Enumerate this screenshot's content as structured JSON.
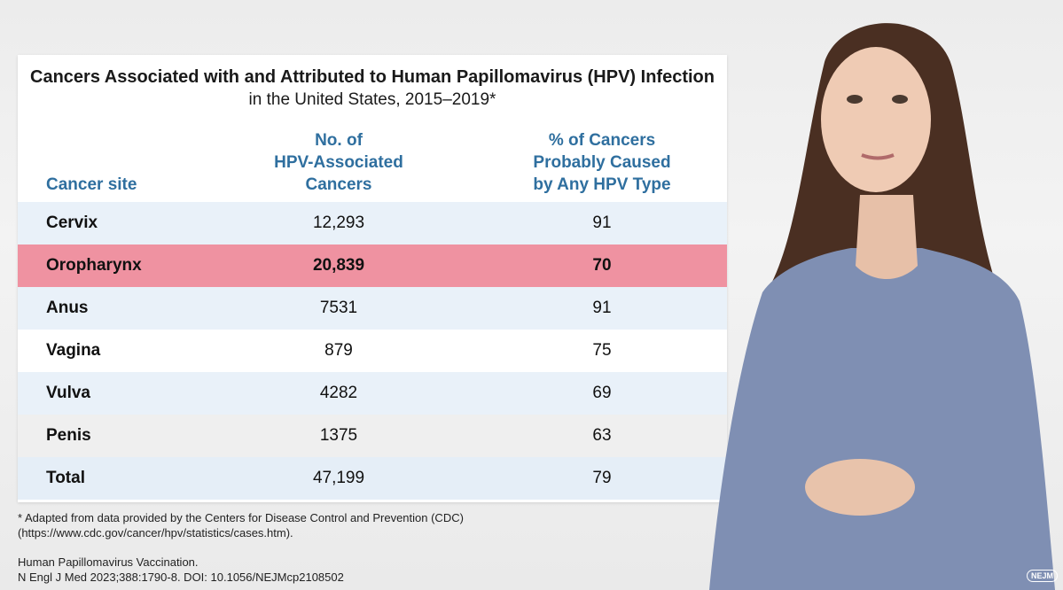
{
  "slide": {
    "title": "Cancers Associated with and Attributed to Human Papillomavirus (HPV) Infection",
    "subtitle": "in the United States, 2015–2019*",
    "headers": {
      "site": "Cancer site",
      "count": [
        "No. of",
        "HPV-Associated",
        "Cancers"
      ],
      "pct": [
        "% of Cancers",
        "Probably Caused",
        "by Any HPV Type"
      ]
    },
    "rows": [
      {
        "site": "Cervix",
        "count": "12,293",
        "pct": "91"
      },
      {
        "site": "Oropharynx",
        "count": "20,839",
        "pct": "70"
      },
      {
        "site": "Anus",
        "count": "7531",
        "pct": "91"
      },
      {
        "site": "Vagina",
        "count": "879",
        "pct": "75"
      },
      {
        "site": "Vulva",
        "count": "4282",
        "pct": "69"
      },
      {
        "site": "Penis",
        "count": "1375",
        "pct": "63"
      },
      {
        "site": "Total",
        "count": "47,199",
        "pct": "79"
      }
    ],
    "footnote": [
      "* Adapted from data provided by the Centers for Disease Control and Prevention (CDC)",
      "(https://www.cdc.gov/cancer/hpv/statistics/cases.htm)."
    ],
    "citation": [
      "Human Papillomavirus Vaccination.",
      "N Engl J Med 2023;388:1790-8. DOI: 10.1056/NEJMcp2108502"
    ]
  },
  "logo": "NEJM",
  "colors": {
    "header_text": "#2f6f9f",
    "highlight_row": "#ef92a1",
    "row_tint": "#e9f1f9"
  }
}
